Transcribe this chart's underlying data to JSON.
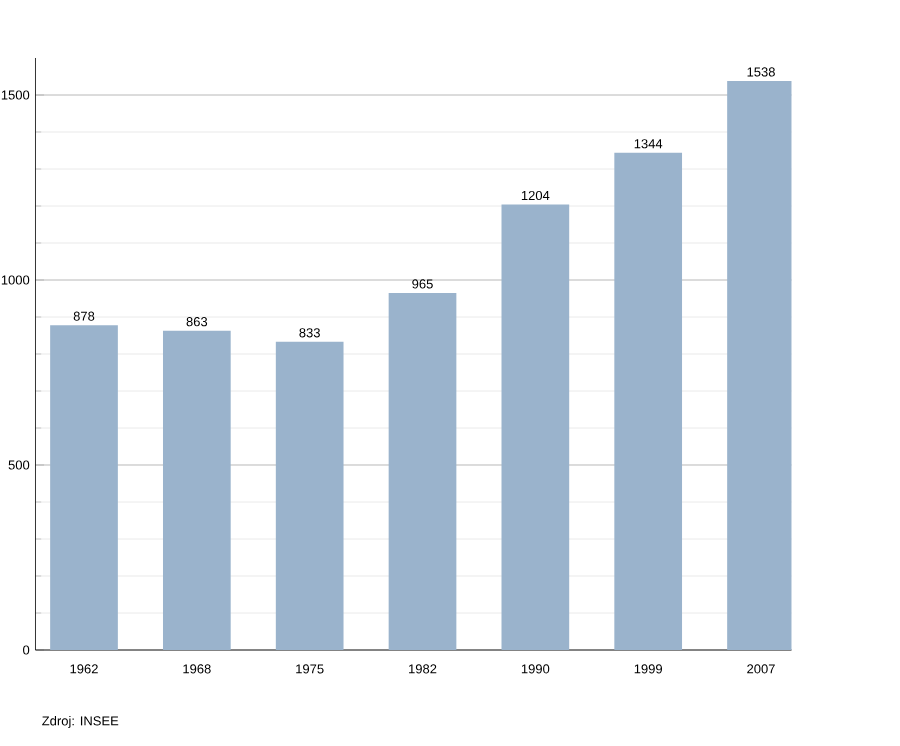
{
  "chart_data": {
    "type": "bar",
    "categories": [
      "1962",
      "1968",
      "1975",
      "1982",
      "1990",
      "1999",
      "2007"
    ],
    "values": [
      878,
      863,
      833,
      965,
      1204,
      1344,
      1538
    ],
    "color": "#9ab3cc",
    "ylim": [
      0,
      1600
    ],
    "yticks": [
      0,
      500,
      1000,
      1500
    ],
    "grid": "y",
    "data_labels": true,
    "annotations": [
      "Zdroj: INSEE"
    ]
  }
}
